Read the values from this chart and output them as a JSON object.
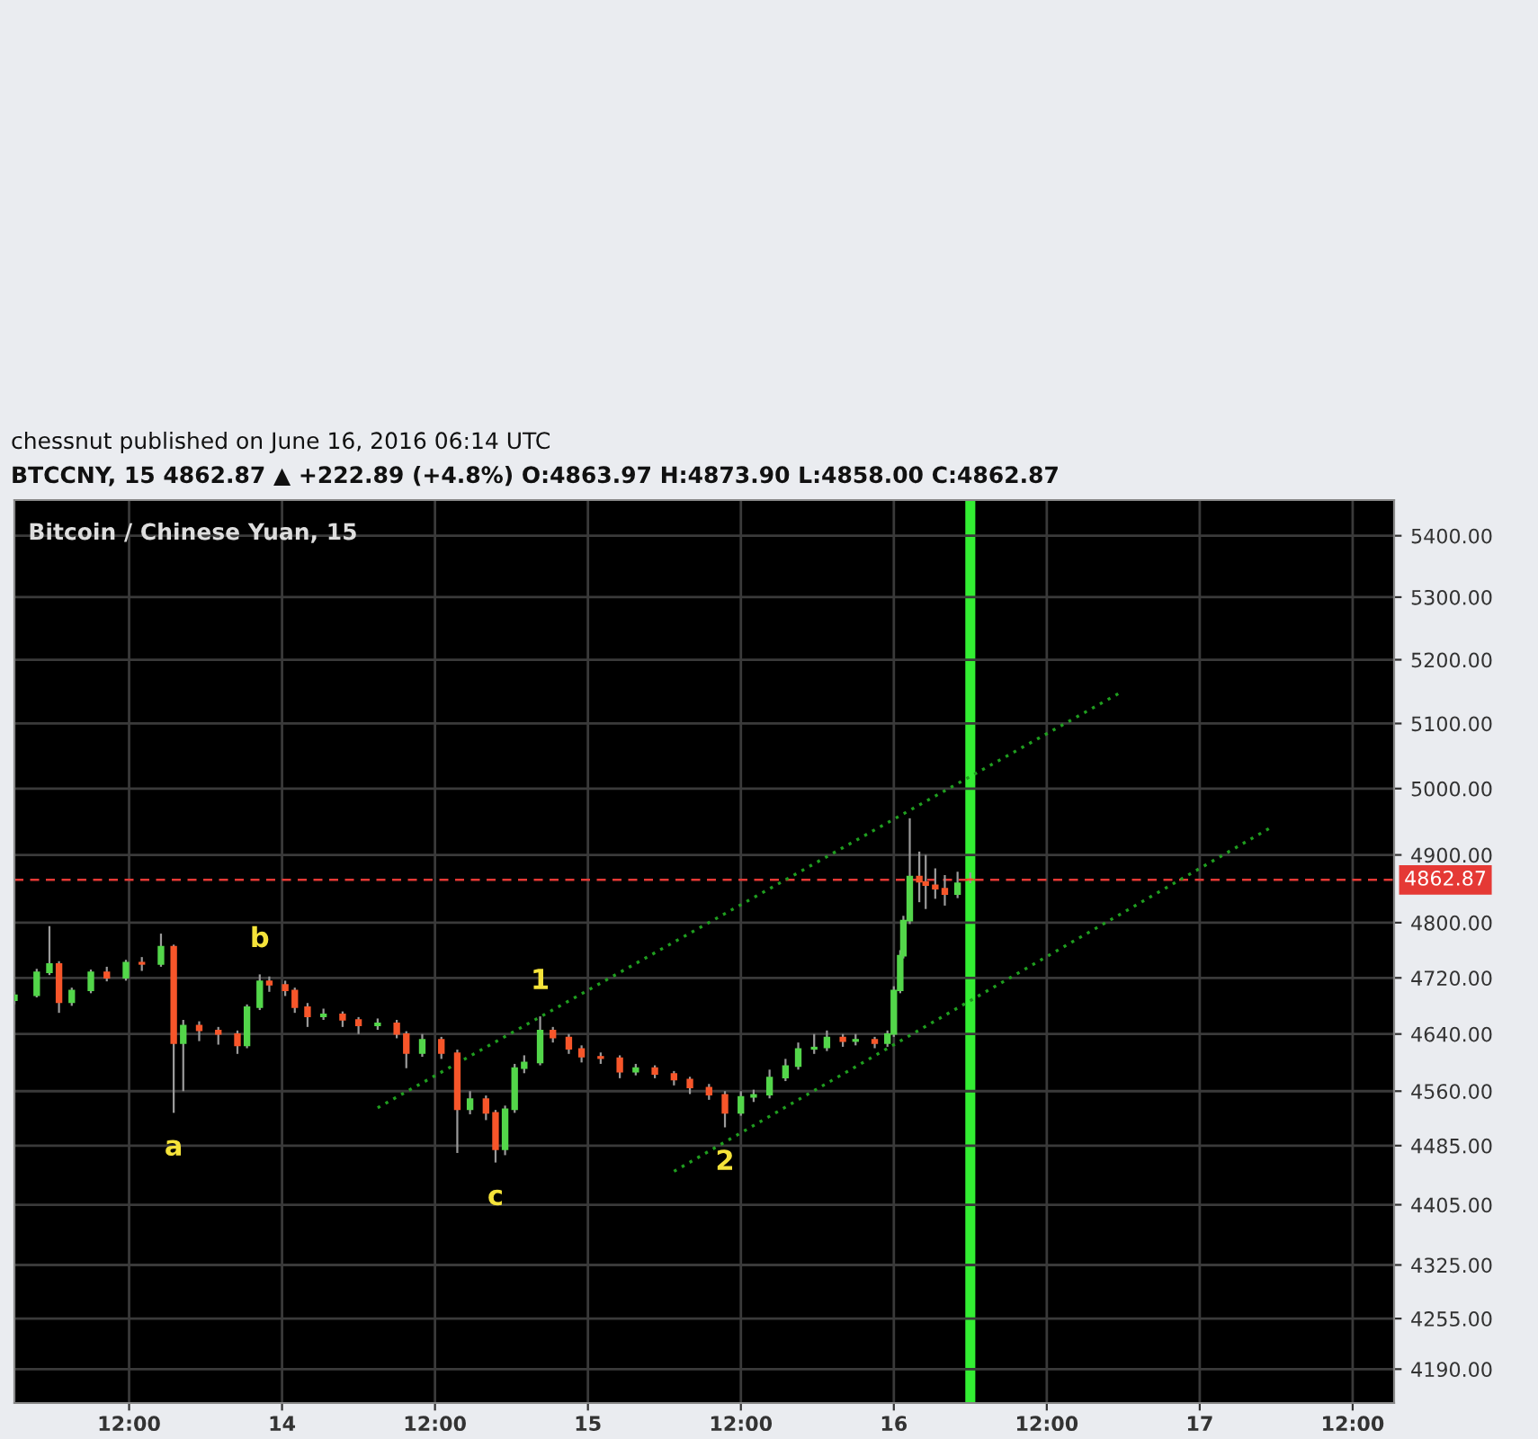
{
  "chart_data": {
    "type": "candlestick",
    "title": "Bitcoin / Chinese Yuan, 15",
    "annotations": [
      "chessnut published on June 16, 2016 06:14 UTC",
      "BTCCNY, 15 4862.87 ▲ +222.89 (+4.8%) O:4863.97 H:4873.90 L:4858.00 C:4862.87",
      {
        "text": "a",
        "x": "2016-06-13T15:30",
        "y": 4530
      },
      {
        "text": "b",
        "x": "2016-06-13T22:15",
        "y": 4725
      },
      {
        "text": "c",
        "x": "2016-06-14T16:45",
        "y": 4462
      },
      {
        "text": "1",
        "x": "2016-06-14T20:15",
        "y": 4665
      },
      {
        "text": "2",
        "x": "2016-06-15T10:45",
        "y": 4510
      }
    ],
    "x": [
      "2016-06-13T03:00",
      "2016-06-13T04:45",
      "2016-06-13T05:45",
      "2016-06-13T06:30",
      "2016-06-13T07:30",
      "2016-06-13T09:00",
      "2016-06-13T10:15",
      "2016-06-13T11:45",
      "2016-06-13T13:00",
      "2016-06-13T14:30",
      "2016-06-13T15:30",
      "2016-06-13T16:15",
      "2016-06-13T17:30",
      "2016-06-13T19:00",
      "2016-06-13T20:30",
      "2016-06-13T21:15",
      "2016-06-13T22:15",
      "2016-06-13T23:00",
      "2016-06-14T00:15",
      "2016-06-14T01:00",
      "2016-06-14T02:00",
      "2016-06-14T03:15",
      "2016-06-14T04:45",
      "2016-06-14T06:00",
      "2016-06-14T07:30",
      "2016-06-14T09:00",
      "2016-06-14T09:45",
      "2016-06-14T11:00",
      "2016-06-14T12:30",
      "2016-06-14T13:45",
      "2016-06-14T14:45",
      "2016-06-14T16:00",
      "2016-06-14T16:45",
      "2016-06-14T17:30",
      "2016-06-14T18:15",
      "2016-06-14T19:00",
      "2016-06-14T20:15",
      "2016-06-14T21:15",
      "2016-06-14T22:30",
      "2016-06-14T23:30",
      "2016-06-15T01:00",
      "2016-06-15T02:30",
      "2016-06-15T03:45",
      "2016-06-15T05:15",
      "2016-06-15T06:45",
      "2016-06-15T08:00",
      "2016-06-15T09:30",
      "2016-06-15T10:45",
      "2016-06-15T12:00",
      "2016-06-15T13:00",
      "2016-06-15T14:15",
      "2016-06-15T15:30",
      "2016-06-15T16:30",
      "2016-06-15T17:45",
      "2016-06-15T18:45",
      "2016-06-15T20:00",
      "2016-06-15T21:00",
      "2016-06-15T22:30",
      "2016-06-15T23:30",
      "2016-06-16T00:00",
      "2016-06-16T00:30",
      "2016-06-16T00:45",
      "2016-06-16T01:15",
      "2016-06-16T02:00",
      "2016-06-16T02:30",
      "2016-06-16T03:15",
      "2016-06-16T04:00",
      "2016-06-16T05:00",
      "2016-06-16T06:00"
    ],
    "ohlc": [
      [
        4688,
        4700,
        4682,
        4695
      ],
      [
        4695,
        4733,
        4692,
        4728
      ],
      [
        4728,
        4795,
        4724,
        4740
      ],
      [
        4740,
        4744,
        4670,
        4685
      ],
      [
        4685,
        4706,
        4680,
        4702
      ],
      [
        4702,
        4732,
        4698,
        4728
      ],
      [
        4728,
        4736,
        4715,
        4720
      ],
      [
        4720,
        4746,
        4716,
        4742
      ],
      [
        4742,
        4750,
        4730,
        4740
      ],
      [
        4740,
        4784,
        4736,
        4765
      ],
      [
        4765,
        4768,
        4530,
        4627
      ],
      [
        4627,
        4660,
        4560,
        4652
      ],
      [
        4652,
        4658,
        4630,
        4645
      ],
      [
        4645,
        4650,
        4625,
        4640
      ],
      [
        4640,
        4645,
        4612,
        4624
      ],
      [
        4624,
        4682,
        4620,
        4678
      ],
      [
        4678,
        4725,
        4674,
        4715
      ],
      [
        4715,
        4722,
        4700,
        4710
      ],
      [
        4710,
        4716,
        4694,
        4702
      ],
      [
        4702,
        4706,
        4670,
        4678
      ],
      [
        4678,
        4684,
        4650,
        4665
      ],
      [
        4665,
        4676,
        4660,
        4668
      ],
      [
        4668,
        4672,
        4650,
        4660
      ],
      [
        4660,
        4664,
        4640,
        4652
      ],
      [
        4652,
        4662,
        4646,
        4655
      ],
      [
        4655,
        4660,
        4634,
        4640
      ],
      [
        4640,
        4644,
        4592,
        4613
      ],
      [
        4613,
        4640,
        4608,
        4632
      ],
      [
        4632,
        4636,
        4605,
        4613
      ],
      [
        4613,
        4618,
        4475,
        4535
      ],
      [
        4535,
        4560,
        4528,
        4549
      ],
      [
        4549,
        4554,
        4520,
        4530
      ],
      [
        4530,
        4534,
        4462,
        4480
      ],
      [
        4480,
        4540,
        4472,
        4535
      ],
      [
        4535,
        4598,
        4530,
        4592
      ],
      [
        4592,
        4610,
        4585,
        4600
      ],
      [
        4600,
        4665,
        4596,
        4645
      ],
      [
        4645,
        4650,
        4628,
        4635
      ],
      [
        4635,
        4640,
        4612,
        4619
      ],
      [
        4619,
        4624,
        4600,
        4608
      ],
      [
        4608,
        4614,
        4598,
        4606
      ],
      [
        4606,
        4610,
        4578,
        4587
      ],
      [
        4587,
        4598,
        4582,
        4592
      ],
      [
        4592,
        4596,
        4578,
        4584
      ],
      [
        4584,
        4588,
        4568,
        4576
      ],
      [
        4576,
        4580,
        4556,
        4565
      ],
      [
        4565,
        4570,
        4548,
        4555
      ],
      [
        4555,
        4560,
        4510,
        4530
      ],
      [
        4530,
        4560,
        4526,
        4552
      ],
      [
        4552,
        4562,
        4545,
        4555
      ],
      [
        4555,
        4590,
        4550,
        4579
      ],
      [
        4579,
        4605,
        4574,
        4595
      ],
      [
        4595,
        4628,
        4590,
        4619
      ],
      [
        4619,
        4640,
        4612,
        4621
      ],
      [
        4621,
        4645,
        4616,
        4635
      ],
      [
        4635,
        4640,
        4622,
        4630
      ],
      [
        4630,
        4640,
        4624,
        4632
      ],
      [
        4632,
        4636,
        4620,
        4627
      ],
      [
        4627,
        4645,
        4622,
        4640
      ],
      [
        4640,
        4708,
        4636,
        4702
      ],
      [
        4702,
        4760,
        4698,
        4752
      ],
      [
        4752,
        4810,
        4748,
        4803
      ],
      [
        4803,
        4955,
        4798,
        4868
      ],
      [
        4868,
        4905,
        4830,
        4860
      ],
      [
        4860,
        4900,
        4820,
        4855
      ],
      [
        4855,
        4880,
        4835,
        4850
      ],
      [
        4850,
        4870,
        4825,
        4842
      ],
      [
        4842,
        4875,
        4836,
        4858
      ],
      [
        4863.97,
        4873.9,
        4858.0,
        4862.87
      ]
    ],
    "series": [
      {
        "type": "line",
        "color": "#1f9e1f",
        "x": [
          "2016-06-14T07:30",
          "2016-06-16T17:45"
        ],
        "values": [
          4537,
          5148
        ]
      },
      {
        "type": "line",
        "color": "#1f9e1f",
        "x": [
          "2016-06-15T06:45",
          "2016-06-17T05:45"
        ],
        "values": [
          4450,
          4943
        ]
      }
    ],
    "line_style": "dotted",
    "ref_lines": [
      {
        "axis": "y",
        "value": 4862.87,
        "label": "4862.87",
        "color": "#e53935",
        "line_style": "dashed"
      },
      {
        "axis": "x",
        "value": "2016-06-16T06:00",
        "color": "#33ee33",
        "line_style": "solid"
      }
    ],
    "xlim": [
      "2016-06-13T03:00",
      "2016-06-17T15:15"
    ],
    "xticks": [
      {
        "value": "2016-06-13T12:00",
        "label": "12:00"
      },
      {
        "value": "2016-06-14T00:00",
        "label": "14"
      },
      {
        "value": "2016-06-14T12:00",
        "label": "12:00"
      },
      {
        "value": "2016-06-15T00:00",
        "label": "15"
      },
      {
        "value": "2016-06-15T12:00",
        "label": "12:00"
      },
      {
        "value": "2016-06-16T00:00",
        "label": "16"
      },
      {
        "value": "2016-06-16T12:00",
        "label": "12:00"
      },
      {
        "value": "2016-06-17T00:00",
        "label": "17"
      },
      {
        "value": "2016-06-17T12:00",
        "label": "12:00"
      }
    ],
    "log": "y",
    "ylim": [
      4147,
      5459
    ],
    "yticks": [
      {
        "value": 4190,
        "label": "4190.00"
      },
      {
        "value": 4255,
        "label": "4255.00"
      },
      {
        "value": 4325,
        "label": "4325.00"
      },
      {
        "value": 4405,
        "label": "4405.00"
      },
      {
        "value": 4485,
        "label": "4485.00"
      },
      {
        "value": 4560,
        "label": "4560.00"
      },
      {
        "value": 4640,
        "label": "4640.00"
      },
      {
        "value": 4720,
        "label": "4720.00"
      },
      {
        "value": 4800,
        "label": "4800.00"
      },
      {
        "value": 4900,
        "label": "4900.00"
      },
      {
        "value": 5000,
        "label": "5000.00"
      },
      {
        "value": 5100,
        "label": "5100.00"
      },
      {
        "value": 5200,
        "label": "5200.00"
      },
      {
        "value": 5300,
        "label": "5300.00"
      },
      {
        "value": 5400,
        "label": "5400.00"
      }
    ],
    "grid": true,
    "legend": false
  }
}
